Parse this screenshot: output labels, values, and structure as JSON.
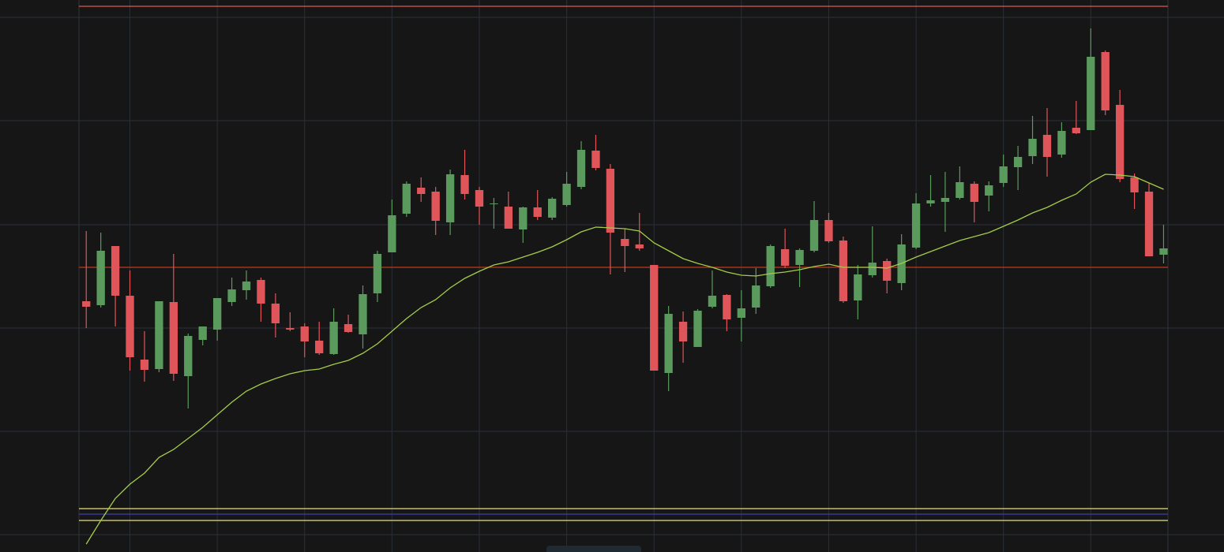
{
  "chart_data": {
    "type": "candlestick",
    "up_color": "#5b9a5d",
    "down_color": "#e0555a",
    "grid": true,
    "grid_color": "#2a3038",
    "xlim": [
      -0.5,
      74.3
    ],
    "xticks": [
      3,
      9,
      15,
      21,
      27,
      33,
      39,
      45,
      51,
      57,
      63,
      69
    ],
    "ylim": [
      0,
      700
    ],
    "yticks": [
      22,
      153,
      284,
      415,
      547,
      678
    ],
    "open": [
      318,
      313,
      388,
      325,
      244,
      232,
      317,
      223,
      269,
      282,
      317,
      332,
      345,
      315,
      284,
      286,
      268,
      251,
      289,
      276,
      328,
      380,
      429,
      462,
      457,
      418,
      478,
      459,
      441,
      438,
      409,
      437,
      424,
      440,
      463,
      509,
      486,
      397,
      390,
      364,
      227,
      292,
      260,
      311,
      326,
      297,
      310,
      337,
      384,
      364,
      382,
      421,
      395,
      319,
      351,
      369,
      341,
      386,
      442,
      444,
      449,
      467,
      452,
      468,
      488,
      502,
      529,
      504,
      538,
      535,
      634,
      567,
      475,
      457,
      377
    ],
    "high": [
      407,
      405,
      388,
      357,
      280,
      318,
      378,
      277,
      286,
      322,
      348,
      357,
      348,
      328,
      304,
      290,
      292,
      309,
      301,
      338,
      382,
      447,
      470,
      475,
      463,
      485,
      510,
      463,
      449,
      457,
      438,
      459,
      450,
      482,
      521,
      529,
      492,
      410,
      430,
      364,
      312,
      305,
      308,
      357,
      327,
      332,
      360,
      390,
      410,
      385,
      445,
      430,
      400,
      364,
      413,
      372,
      403,
      455,
      478,
      482,
      489,
      470,
      470,
      504,
      515,
      553,
      563,
      545,
      572,
      664,
      636,
      586,
      480,
      468,
      415
    ],
    "low": [
      284,
      310,
      286,
      230,
      216,
      228,
      217,
      182,
      262,
      268,
      312,
      320,
      292,
      272,
      280,
      247,
      250,
      250,
      278,
      258,
      317,
      380,
      425,
      444,
      402,
      402,
      447,
      415,
      410,
      410,
      392,
      421,
      421,
      438,
      460,
      484,
      352,
      355,
      382,
      230,
      204,
      240,
      260,
      309,
      280,
      267,
      302,
      335,
      360,
      336,
      380,
      392,
      316,
      295,
      348,
      328,
      332,
      384,
      438,
      406,
      447,
      418,
      432,
      463,
      459,
      492,
      476,
      500,
      530,
      535,
      554,
      469,
      435,
      375,
      366
    ],
    "close": [
      311,
      382,
      325,
      247,
      231,
      318,
      226,
      274,
      286,
      322,
      333,
      343,
      315,
      290,
      282,
      267,
      252,
      292,
      279,
      327,
      378,
      427,
      467,
      454,
      420,
      479,
      454,
      438,
      442,
      410,
      437,
      425,
      448,
      467,
      510,
      487,
      405,
      388,
      385,
      230,
      302,
      267,
      306,
      325,
      295,
      309,
      338,
      388,
      363,
      383,
      421,
      394,
      318,
      352,
      367,
      344,
      390,
      442,
      446,
      449,
      469,
      444,
      465,
      489,
      501,
      524,
      501,
      534,
      531,
      628,
      560,
      473,
      456,
      375,
      385
    ],
    "series": [
      {
        "color": "#a4cc4a",
        "values": [
          10,
          40,
          68,
          86,
          100,
          120,
          130,
          144,
          158,
          174,
          190,
          204,
          213,
          220,
          226,
          230,
          232,
          238,
          243,
          252,
          264,
          280,
          296,
          310,
          320,
          335,
          347,
          356,
          364,
          368,
          374,
          380,
          387,
          396,
          406,
          412,
          411,
          410,
          407,
          392,
          382,
          372,
          366,
          361,
          355,
          351,
          350,
          353,
          355,
          358,
          362,
          365,
          361,
          361,
          361,
          360,
          366,
          374,
          381,
          388,
          395,
          400,
          405,
          413,
          421,
          430,
          437,
          446,
          454,
          469,
          479,
          478,
          476,
          468,
          460
        ]
      }
    ],
    "hlines": [
      {
        "value": 692,
        "color": "#d9594c"
      },
      {
        "value": 361,
        "color": "#c0391b"
      },
      {
        "value": 55,
        "color": "#e6e07a"
      },
      {
        "value": 48,
        "color": "#3f3fa8"
      },
      {
        "value": 40,
        "color": "#e6e07a"
      }
    ]
  }
}
